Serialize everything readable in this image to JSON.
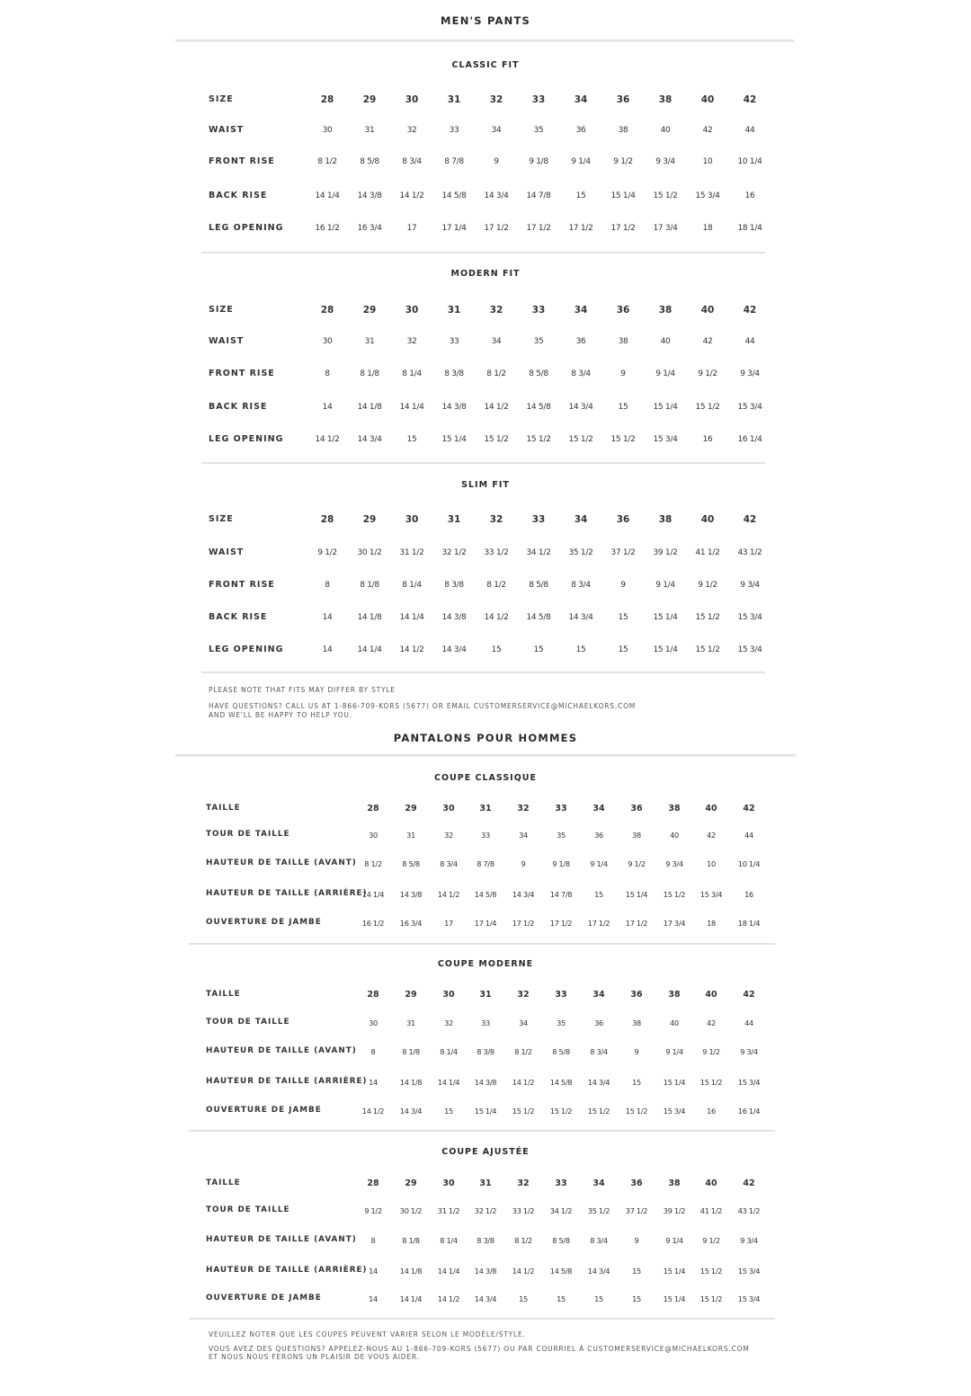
{
  "english": {
    "title": "MEN'S PANTS",
    "sections": [
      {
        "heading": "CLASSIC FIT",
        "rows": [
          {
            "label": "SIZE",
            "values": [
              "28",
              "29",
              "30",
              "31",
              "32",
              "33",
              "34",
              "36",
              "38",
              "40",
              "42"
            ]
          },
          {
            "label": "WAIST",
            "values": [
              "30",
              "31",
              "32",
              "33",
              "34",
              "35",
              "36",
              "38",
              "40",
              "42",
              "44"
            ]
          },
          {
            "label": "FRONT RISE",
            "values": [
              "8 1/2",
              "8 5/8",
              "8 3/4",
              "8 7/8",
              "9",
              "9 1/8",
              "9 1/4",
              "9 1/2",
              "9 3/4",
              "10",
              "10 1/4"
            ]
          },
          {
            "label": "BACK RISE",
            "values": [
              "14 1/4",
              "14 3/8",
              "14 1/2",
              "14 5/8",
              "14 3/4",
              "14 7/8",
              "15",
              "15 1/4",
              "15 1/2",
              "15 3/4",
              "16"
            ]
          },
          {
            "label": "LEG OPENING",
            "values": [
              "16 1/2",
              "16 3/4",
              "17",
              "17 1/4",
              "17 1/2",
              "17 1/2",
              "17 1/2",
              "17 1/2",
              "17 3/4",
              "18",
              "18 1/4"
            ]
          }
        ]
      },
      {
        "heading": "MODERN FIT",
        "rows": [
          {
            "label": "SIZE",
            "values": [
              "28",
              "29",
              "30",
              "31",
              "32",
              "33",
              "34",
              "36",
              "38",
              "40",
              "42"
            ]
          },
          {
            "label": "WAIST",
            "values": [
              "30",
              "31",
              "32",
              "33",
              "34",
              "35",
              "36",
              "38",
              "40",
              "42",
              "44"
            ]
          },
          {
            "label": "FRONT RISE",
            "values": [
              "8",
              "8 1/8",
              "8 1/4",
              "8 3/8",
              "8 1/2",
              "8 5/8",
              "8 3/4",
              "9",
              "9 1/4",
              "9 1/2",
              "9 3/4"
            ]
          },
          {
            "label": "BACK RISE",
            "values": [
              "14",
              "14 1/8",
              "14 1/4",
              "14 3/8",
              "14 1/2",
              "14 5/8",
              "14 3/4",
              "15",
              "15 1/4",
              "15 1/2",
              "15 3/4"
            ]
          },
          {
            "label": "LEG OPENING",
            "values": [
              "14 1/2",
              "14 3/4",
              "15",
              "15 1/4",
              "15 1/2",
              "15 1/2",
              "15 1/2",
              "15 1/2",
              "15 3/4",
              "16",
              "16 1/4"
            ]
          }
        ]
      },
      {
        "heading": "SLIM FIT",
        "rows": [
          {
            "label": "SIZE",
            "values": [
              "28",
              "29",
              "30",
              "31",
              "32",
              "33",
              "34",
              "36",
              "38",
              "40",
              "42"
            ]
          },
          {
            "label": "WAIST",
            "values": [
              "9 1/2",
              "30 1/2",
              "31 1/2",
              "32 1/2",
              "33 1/2",
              "34 1/2",
              "35 1/2",
              "37 1/2",
              "39 1/2",
              "41 1/2",
              "43 1/2"
            ]
          },
          {
            "label": "FRONT RISE",
            "values": [
              "8",
              "8 1/8",
              "8 1/4",
              "8 3/8",
              "8 1/2",
              "8 5/8",
              "8 3/4",
              "9",
              "9 1/4",
              "9 1/2",
              "9 3/4"
            ]
          },
          {
            "label": "BACK RISE",
            "values": [
              "14",
              "14 1/8",
              "14 1/4",
              "14 3/8",
              "14 1/2",
              "14 5/8",
              "14 3/4",
              "15",
              "15 1/4",
              "15 1/2",
              "15 3/4"
            ]
          },
          {
            "label": "LEG OPENING",
            "values": [
              "14",
              "14 1/4",
              "14 1/2",
              "14 3/4",
              "15",
              "15",
              "15",
              "15",
              "15 1/4",
              "15 1/2",
              "15 3/4"
            ]
          }
        ]
      }
    ],
    "notes": [
      "PLEASE NOTE THAT FITS MAY DIFFER BY STYLE",
      "HAVE QUESTIONS? CALL US AT 1-866-709-KORS (5677) OR EMAIL CUSTOMERSERVICE@MICHAELKORS.COM",
      "AND WE'LL BE HAPPY TO HELP YOU."
    ]
  },
  "french": {
    "title": "PANTALONS POUR HOMMES",
    "sections": [
      {
        "heading": "COUPE CLASSIQUE",
        "rows": [
          {
            "label": "TAILLE",
            "values": [
              "28",
              "29",
              "30",
              "31",
              "32",
              "33",
              "34",
              "36",
              "38",
              "40",
              "42"
            ]
          },
          {
            "label": "TOUR DE TAILLE",
            "values": [
              "30",
              "31",
              "32",
              "33",
              "34",
              "35",
              "36",
              "38",
              "40",
              "42",
              "44"
            ]
          },
          {
            "label": "HAUTEUR DE TAILLE (AVANT)",
            "values": [
              "8 1/2",
              "8 5/8",
              "8 3/4",
              "8 7/8",
              "9",
              "9 1/8",
              "9 1/4",
              "9 1/2",
              "9 3/4",
              "10",
              "10 1/4"
            ]
          },
          {
            "label": "HAUTEUR DE TAILLE (ARRIÈRE)",
            "values": [
              "14 1/4",
              "14 3/8",
              "14 1/2",
              "14 5/8",
              "14 3/4",
              "14 7/8",
              "15",
              "15 1/4",
              "15 1/2",
              "15 3/4",
              "16"
            ]
          },
          {
            "label": "OUVERTURE DE JAMBE",
            "values": [
              "16 1/2",
              "16 3/4",
              "17",
              "17 1/4",
              "17 1/2",
              "17 1/2",
              "17 1/2",
              "17 1/2",
              "17 3/4",
              "18",
              "18 1/4"
            ]
          }
        ]
      },
      {
        "heading": "COUPE MODERNE",
        "rows": [
          {
            "label": "TAILLE",
            "values": [
              "28",
              "29",
              "30",
              "31",
              "32",
              "33",
              "34",
              "36",
              "38",
              "40",
              "42"
            ]
          },
          {
            "label": "TOUR DE TAILLE",
            "values": [
              "30",
              "31",
              "32",
              "33",
              "34",
              "35",
              "36",
              "38",
              "40",
              "42",
              "44"
            ]
          },
          {
            "label": "HAUTEUR DE TAILLE (AVANT)",
            "values": [
              "8",
              "8 1/8",
              "8 1/4",
              "8 3/8",
              "8 1/2",
              "8 5/8",
              "8 3/4",
              "9",
              "9 1/4",
              "9 1/2",
              "9 3/4"
            ]
          },
          {
            "label": "HAUTEUR DE TAILLE (ARRIÈRE)",
            "values": [
              "14",
              "14 1/8",
              "14 1/4",
              "14 3/8",
              "14 1/2",
              "14 5/8",
              "14 3/4",
              "15",
              "15 1/4",
              "15 1/2",
              "15 3/4"
            ]
          },
          {
            "label": "OUVERTURE DE JAMBE",
            "values": [
              "14 1/2",
              "14 3/4",
              "15",
              "15 1/4",
              "15 1/2",
              "15 1/2",
              "15 1/2",
              "15 1/2",
              "15 3/4",
              "16",
              "16 1/4"
            ]
          }
        ]
      },
      {
        "heading": "COUPE AJUSTÉE",
        "rows": [
          {
            "label": "TAILLE",
            "values": [
              "28",
              "29",
              "30",
              "31",
              "32",
              "33",
              "34",
              "36",
              "38",
              "40",
              "42"
            ]
          },
          {
            "label": "TOUR DE TAILLE",
            "values": [
              "9 1/2",
              "30 1/2",
              "31 1/2",
              "32 1/2",
              "33 1/2",
              "34 1/2",
              "35 1/2",
              "37 1/2",
              "39 1/2",
              "41 1/2",
              "43 1/2"
            ]
          },
          {
            "label": "HAUTEUR DE TAILLE (AVANT)",
            "values": [
              "8",
              "8 1/8",
              "8 1/4",
              "8 3/8",
              "8 1/2",
              "8 5/8",
              "8 3/4",
              "9",
              "9 1/4",
              "9 1/2",
              "9 3/4"
            ]
          },
          {
            "label": "HAUTEUR DE TAILLE (ARRIÈRE)",
            "values": [
              "14",
              "14 1/8",
              "14 1/4",
              "14 3/8",
              "14 1/2",
              "14 5/8",
              "14 3/4",
              "15",
              "15 1/4",
              "15 1/2",
              "15 3/4"
            ]
          },
          {
            "label": "OUVERTURE DE JAMBE",
            "values": [
              "14",
              "14 1/4",
              "14 1/2",
              "14 3/4",
              "15",
              "15",
              "15",
              "15",
              "15 1/4",
              "15 1/2",
              "15 3/4"
            ]
          }
        ]
      }
    ],
    "notes": [
      "VEUILLEZ NOTER QUE LES COUPES PEUVENT VARIER SELON LE MODÈLE/STYLE.",
      "VOUS AVEZ DES QUESTIONS? APPELEZ-NOUS AU 1-866-709-KORS (5677) OU PAR COURRIEL À CUSTOMERSERVICE@MICHAELKORS.COM",
      "ET NOUS NOUS FERONS UN PLAISIR DE VOUS AIDER."
    ]
  }
}
